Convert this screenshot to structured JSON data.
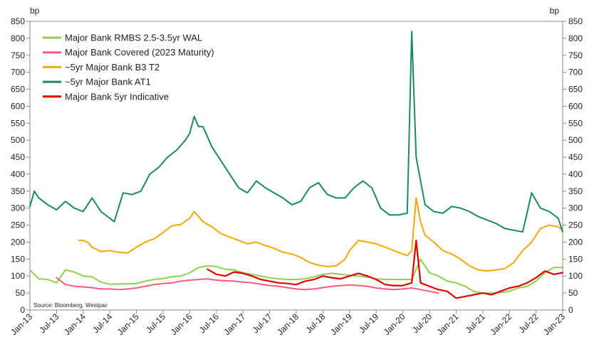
{
  "chart_data": {
    "type": "line",
    "ylabel_left": "bp",
    "ylabel_right": "bp",
    "ylim": [
      0,
      850
    ],
    "yticks": [
      0,
      50,
      100,
      150,
      200,
      250,
      300,
      350,
      400,
      450,
      500,
      550,
      600,
      650,
      700,
      750,
      800,
      850
    ],
    "x_tick_labels": [
      "Jan-13",
      "Jul-13",
      "Jan-14",
      "Jul-14",
      "Jan-15",
      "Jul-15",
      "Jan-16",
      "Jul-16",
      "Jan-17",
      "Jul-17",
      "Jan-18",
      "Jul-18",
      "Jan-19",
      "Jul-19",
      "Jan-20",
      "Jul-20",
      "Jan-21",
      "Jul-21",
      "Jan-22",
      "Jul-22",
      "Jan-23"
    ],
    "legend_position": "top-left",
    "grid": false,
    "source": "Source: Bloomberg, Westpac",
    "series": [
      {
        "name": "Major Bank RMBS 2.5-3.5yr WAL",
        "color": "#8ed14b",
        "x": [
          "2013-01",
          "2013-03",
          "2013-05",
          "2013-07",
          "2013-09",
          "2013-11",
          "2014-01",
          "2014-03",
          "2014-05",
          "2014-07",
          "2014-09",
          "2014-11",
          "2015-01",
          "2015-03",
          "2015-05",
          "2015-07",
          "2015-09",
          "2015-11",
          "2016-01",
          "2016-03",
          "2016-05",
          "2016-07",
          "2016-09",
          "2016-11",
          "2017-01",
          "2017-03",
          "2017-05",
          "2017-07",
          "2017-09",
          "2017-11",
          "2018-01",
          "2018-03",
          "2018-05",
          "2018-07",
          "2018-09",
          "2018-11",
          "2019-01",
          "2019-03",
          "2019-05",
          "2019-07",
          "2019-09",
          "2019-11",
          "2020-01",
          "2020-03",
          "2020-05",
          "2020-07",
          "2020-09",
          "2020-11",
          "2021-01",
          "2021-03",
          "2021-05",
          "2021-07",
          "2021-09",
          "2021-11",
          "2022-01",
          "2022-03",
          "2022-05",
          "2022-07",
          "2022-09",
          "2022-11",
          "2023-01"
        ],
        "values": [
          118,
          92,
          90,
          80,
          118,
          112,
          100,
          98,
          82,
          76,
          77,
          77,
          78,
          85,
          90,
          93,
          98,
          100,
          110,
          125,
          130,
          128,
          120,
          118,
          110,
          105,
          100,
          95,
          92,
          90,
          90,
          92,
          98,
          105,
          108,
          105,
          102,
          100,
          97,
          92,
          90,
          90,
          90,
          90,
          150,
          110,
          100,
          85,
          80,
          70,
          55,
          50,
          50,
          52,
          55,
          65,
          70,
          85,
          110,
          125,
          125
        ]
      },
      {
        "name": "Major Bank Covered (2023 Maturity)",
        "color": "#ff5b78",
        "x": [
          "2013-07",
          "2013-09",
          "2013-11",
          "2014-01",
          "2014-03",
          "2014-05",
          "2014-07",
          "2014-09",
          "2014-11",
          "2015-01",
          "2015-03",
          "2015-05",
          "2015-07",
          "2015-09",
          "2015-11",
          "2016-01",
          "2016-03",
          "2016-05",
          "2016-07",
          "2016-09",
          "2016-11",
          "2017-01",
          "2017-03",
          "2017-05",
          "2017-07",
          "2017-09",
          "2017-11",
          "2018-01",
          "2018-03",
          "2018-05",
          "2018-07",
          "2018-09",
          "2018-11",
          "2019-01",
          "2019-03",
          "2019-05",
          "2019-07",
          "2019-09",
          "2019-11",
          "2020-01",
          "2020-03",
          "2020-05",
          "2020-07",
          "2020-09"
        ],
        "values": [
          95,
          75,
          70,
          68,
          66,
          62,
          62,
          60,
          62,
          65,
          70,
          75,
          78,
          80,
          85,
          88,
          90,
          92,
          88,
          86,
          85,
          82,
          80,
          76,
          72,
          70,
          66,
          62,
          60,
          62,
          66,
          70,
          72,
          74,
          72,
          70,
          65,
          62,
          60,
          62,
          65,
          60,
          55,
          50
        ]
      },
      {
        "name": "~5yr Major Bank B3 T2",
        "color": "#f5a800",
        "x": [
          "2013-12",
          "2014-01",
          "2014-02",
          "2014-03",
          "2014-05",
          "2014-07",
          "2014-09",
          "2014-11",
          "2015-01",
          "2015-03",
          "2015-05",
          "2015-07",
          "2015-09",
          "2015-11",
          "2016-01",
          "2016-02",
          "2016-03",
          "2016-04",
          "2016-06",
          "2016-08",
          "2016-10",
          "2016-12",
          "2017-02",
          "2017-04",
          "2017-06",
          "2017-08",
          "2017-10",
          "2017-12",
          "2018-02",
          "2018-04",
          "2018-06",
          "2018-08",
          "2018-10",
          "2018-12",
          "2019-01",
          "2019-03",
          "2019-05",
          "2019-07",
          "2019-09",
          "2019-11",
          "2020-01",
          "2020-02",
          "2020-03",
          "2020-04",
          "2020-05",
          "2020-06",
          "2020-08",
          "2020-10",
          "2020-12",
          "2021-02",
          "2021-04",
          "2021-06",
          "2021-08",
          "2021-10",
          "2021-12",
          "2022-02",
          "2022-04",
          "2022-06",
          "2022-08",
          "2022-10",
          "2022-12",
          "2023-01"
        ],
        "values": [
          205,
          205,
          200,
          185,
          172,
          175,
          170,
          168,
          185,
          200,
          210,
          228,
          248,
          252,
          270,
          290,
          275,
          260,
          245,
          225,
          215,
          205,
          195,
          200,
          190,
          182,
          170,
          165,
          155,
          140,
          132,
          128,
          130,
          150,
          175,
          205,
          200,
          195,
          185,
          175,
          165,
          160,
          175,
          330,
          260,
          220,
          200,
          175,
          165,
          150,
          130,
          118,
          115,
          118,
          122,
          140,
          175,
          200,
          240,
          250,
          245,
          235
        ]
      },
      {
        "name": "~5yr Major Bank AT1",
        "color": "#1a8a64",
        "x": [
          "2013-01",
          "2013-02",
          "2013-03",
          "2013-05",
          "2013-07",
          "2013-09",
          "2013-11",
          "2014-01",
          "2014-03",
          "2014-05",
          "2014-07",
          "2014-08",
          "2014-10",
          "2014-12",
          "2015-02",
          "2015-04",
          "2015-06",
          "2015-08",
          "2015-10",
          "2015-12",
          "2016-01",
          "2016-02",
          "2016-03",
          "2016-04",
          "2016-05",
          "2016-06",
          "2016-08",
          "2016-10",
          "2016-12",
          "2017-02",
          "2017-04",
          "2017-06",
          "2017-08",
          "2017-10",
          "2017-12",
          "2018-02",
          "2018-04",
          "2018-06",
          "2018-08",
          "2018-10",
          "2018-12",
          "2019-02",
          "2019-04",
          "2019-06",
          "2019-08",
          "2019-10",
          "2019-12",
          "2020-02",
          "2020-03",
          "2020-04",
          "2020-05",
          "2020-06",
          "2020-08",
          "2020-10",
          "2020-12",
          "2021-02",
          "2021-04",
          "2021-06",
          "2021-08",
          "2021-10",
          "2021-12",
          "2022-02",
          "2022-04",
          "2022-06",
          "2022-08",
          "2022-10",
          "2022-12",
          "2023-01"
        ],
        "values": [
          305,
          350,
          330,
          310,
          295,
          320,
          300,
          290,
          330,
          290,
          270,
          260,
          345,
          340,
          350,
          400,
          420,
          450,
          470,
          500,
          520,
          570,
          540,
          540,
          510,
          480,
          440,
          400,
          360,
          345,
          380,
          360,
          345,
          330,
          310,
          320,
          360,
          375,
          340,
          330,
          330,
          360,
          380,
          360,
          300,
          280,
          280,
          285,
          820,
          450,
          380,
          310,
          290,
          285,
          305,
          300,
          290,
          275,
          265,
          255,
          240,
          235,
          230,
          345,
          300,
          290,
          270,
          230
        ]
      },
      {
        "name": "Major Bank 5yr Indicative",
        "color": "#e60000",
        "x": [
          "2016-05",
          "2016-07",
          "2016-09",
          "2016-11",
          "2017-01",
          "2017-03",
          "2017-05",
          "2017-07",
          "2017-09",
          "2017-11",
          "2018-01",
          "2018-03",
          "2018-05",
          "2018-07",
          "2018-09",
          "2018-11",
          "2019-01",
          "2019-03",
          "2019-05",
          "2019-07",
          "2019-09",
          "2019-11",
          "2020-01",
          "2020-03",
          "2020-04",
          "2020-05",
          "2020-07",
          "2020-09",
          "2020-11",
          "2021-01",
          "2021-03",
          "2021-05",
          "2021-07",
          "2021-09",
          "2021-11",
          "2022-01",
          "2022-03",
          "2022-05",
          "2022-07",
          "2022-09",
          "2022-11",
          "2023-01"
        ],
        "values": [
          120,
          105,
          100,
          112,
          108,
          100,
          90,
          85,
          80,
          78,
          75,
          85,
          90,
          100,
          95,
          92,
          100,
          108,
          100,
          90,
          75,
          72,
          72,
          80,
          205,
          80,
          70,
          60,
          55,
          35,
          40,
          45,
          50,
          45,
          55,
          65,
          70,
          80,
          95,
          115,
          105,
          110
        ]
      }
    ]
  }
}
